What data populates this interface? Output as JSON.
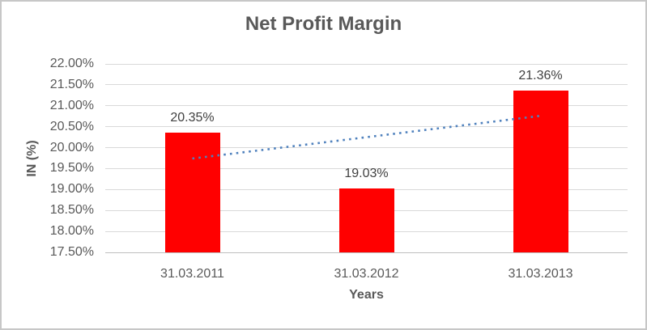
{
  "frame": {
    "border_color": "#c7c7c7",
    "background_color": "#ffffff"
  },
  "chart_data": {
    "type": "bar",
    "title": "Net Profit Margin",
    "xlabel": "Years",
    "ylabel": "IN (%)",
    "categories": [
      "31.03.2011",
      "31.03.2012",
      "31.03.2013"
    ],
    "series": [
      {
        "name": "Net Profit Margin",
        "values": [
          20.35,
          19.03,
          21.36
        ]
      }
    ],
    "data_labels": [
      "20.35%",
      "19.03%",
      "21.36%"
    ],
    "ylim": [
      17.5,
      22.0
    ],
    "ytick_step": 0.5,
    "yticks": [
      "22.00%",
      "21.50%",
      "21.00%",
      "20.50%",
      "20.00%",
      "19.50%",
      "19.00%",
      "18.50%",
      "18.00%",
      "17.50%"
    ],
    "grid": true,
    "legend": "none",
    "bar_color": "#ff0000",
    "gridline_color": "#d9d9d9",
    "axis_line_color": "#bfbfbf",
    "title_color": "#595959",
    "tick_color": "#595959",
    "data_label_color": "#404040",
    "trendline": {
      "type": "linear",
      "style": "dotted",
      "color": "#4f81bd",
      "start_value": 19.74,
      "end_value": 20.76
    }
  }
}
